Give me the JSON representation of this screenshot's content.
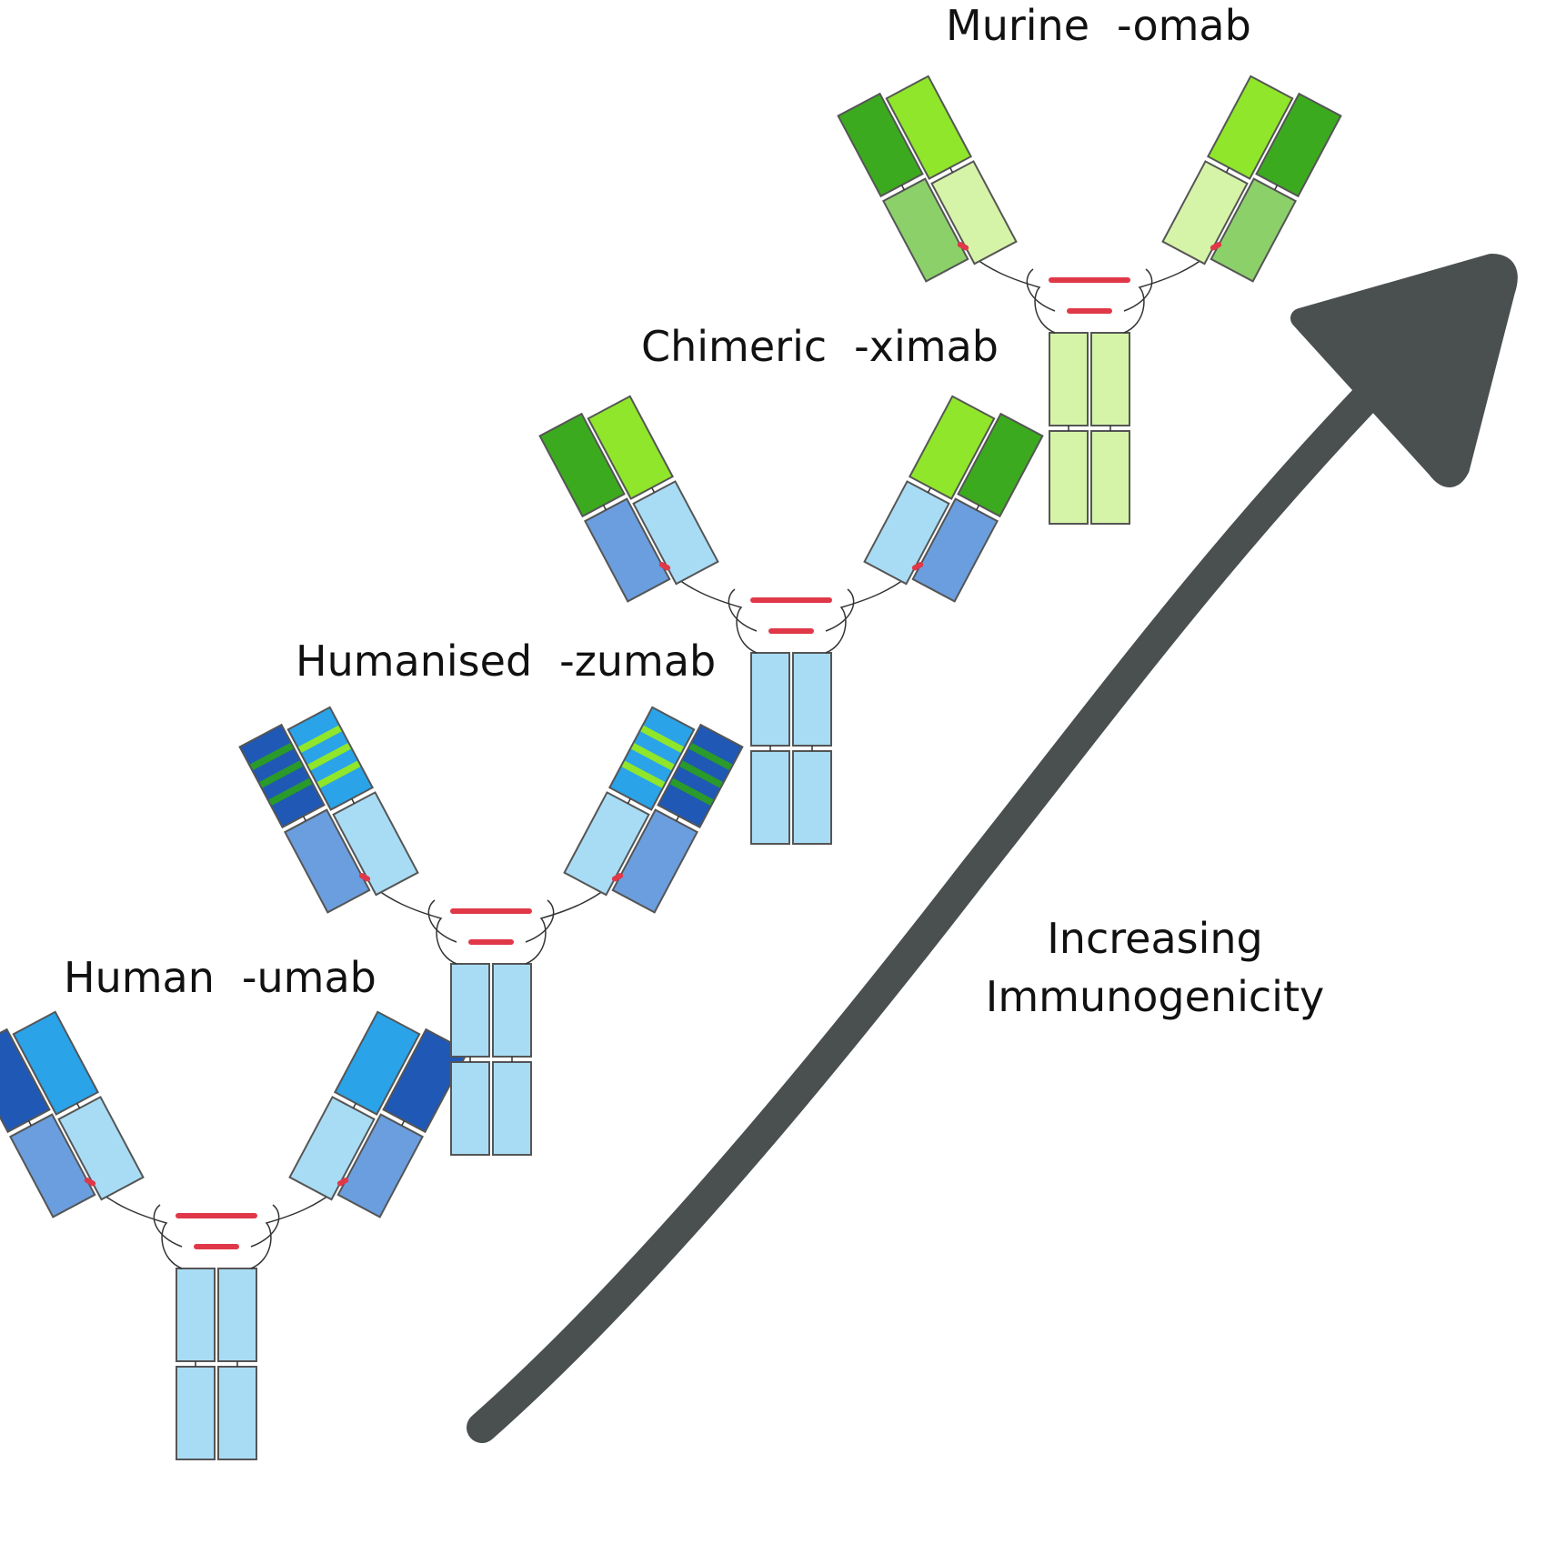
{
  "labels": {
    "human": {
      "name": "Human",
      "suffix": "-umab"
    },
    "humanised": {
      "name": "Humanised",
      "suffix": "-zumab"
    },
    "chimeric": {
      "name": "Chimeric",
      "suffix": "-ximab"
    },
    "murine": {
      "name": "Murine",
      "suffix": "-omab"
    }
  },
  "arrow_label": {
    "line1": "Increasing",
    "line2": "Immunogenicity"
  },
  "colors": {
    "human_heavy_variable": "#1f58b5",
    "human_light_variable": "#2aa3e8",
    "human_heavy_constant": "#6b9ede",
    "human_light_constant": "#a8dcf5",
    "human_fc": "#a8dcf5",
    "murine_heavy_variable": "#3caa1e",
    "murine_light_variable": "#8fe62a",
    "murine_heavy_constant": "#8cd06a",
    "murine_light_constant": "#d6f4a8",
    "murine_fc": "#d6f4a8",
    "cdr_stripe_heavy": "#2a9a2a",
    "cdr_stripe_light": "#8fe62a",
    "disulfide_bond": "#e03848",
    "arrow": "#4a4f50"
  }
}
